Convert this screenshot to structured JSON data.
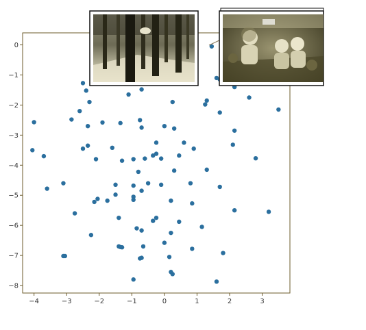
{
  "chart_data": {
    "type": "scatter",
    "title": "",
    "xlabel": "",
    "ylabel": "",
    "xlim": [
      -4.35,
      3.85
    ],
    "ylim": [
      -8.25,
      0.4
    ],
    "xticks": [
      -4,
      -3,
      -2,
      -1,
      0,
      1,
      2,
      3
    ],
    "yticks": [
      0,
      -1,
      -2,
      -3,
      -4,
      -5,
      -6,
      -7,
      -8
    ],
    "grid": false,
    "legend": "none",
    "colors": {
      "points": "#2b6f9e",
      "axes": "#6b5a2a",
      "photo_frame": "#111111",
      "connector": "#8a7a5a"
    },
    "series": [
      {
        "points": [
          [
            1.45,
            -0.05
          ],
          [
            2.6,
            -1.75
          ],
          [
            3.5,
            -2.15
          ],
          [
            2.15,
            -1.4
          ],
          [
            1.7,
            -1.15
          ],
          [
            1.3,
            -1.85
          ],
          [
            1.25,
            -1.98
          ],
          [
            -2.5,
            -1.27
          ],
          [
            -2.4,
            -1.52
          ],
          [
            -2.3,
            -1.9
          ],
          [
            -2.6,
            -2.2
          ],
          [
            -2.85,
            -2.48
          ],
          [
            -2.35,
            -2.7
          ],
          [
            -1.9,
            -2.58
          ],
          [
            -1.35,
            -2.6
          ],
          [
            -1.1,
            -1.65
          ],
          [
            -0.7,
            -1.48
          ],
          [
            0.25,
            -1.9
          ],
          [
            -0.75,
            -2.5
          ],
          [
            -0.7,
            -2.75
          ],
          [
            0.0,
            -2.7
          ],
          [
            0.3,
            -2.78
          ],
          [
            0.6,
            -3.25
          ],
          [
            0.45,
            -3.68
          ],
          [
            0.9,
            -3.45
          ],
          [
            1.7,
            -2.25
          ],
          [
            2.15,
            -2.85
          ],
          [
            2.1,
            -3.32
          ],
          [
            2.8,
            -3.77
          ],
          [
            -4.0,
            -2.57
          ],
          [
            -4.05,
            -3.5
          ],
          [
            -3.7,
            -3.7
          ],
          [
            -3.6,
            -4.78
          ],
          [
            -3.1,
            -4.6
          ],
          [
            -2.5,
            -3.45
          ],
          [
            -2.35,
            -3.35
          ],
          [
            -2.1,
            -3.8
          ],
          [
            -1.6,
            -3.42
          ],
          [
            -1.3,
            -3.85
          ],
          [
            -0.95,
            -3.8
          ],
          [
            -0.8,
            -4.22
          ],
          [
            -0.6,
            -3.78
          ],
          [
            -0.35,
            -3.68
          ],
          [
            -0.25,
            -3.62
          ],
          [
            -0.1,
            -3.78
          ],
          [
            -0.25,
            -3.25
          ],
          [
            0.3,
            -4.18
          ],
          [
            0.8,
            -4.6
          ],
          [
            1.3,
            -4.15
          ],
          [
            1.7,
            -4.72
          ],
          [
            -0.5,
            -4.6
          ],
          [
            -0.7,
            -4.85
          ],
          [
            -0.95,
            -4.68
          ],
          [
            -0.1,
            -4.65
          ],
          [
            -1.5,
            -4.65
          ],
          [
            -1.5,
            -4.98
          ],
          [
            -1.75,
            -5.18
          ],
          [
            -2.05,
            -5.12
          ],
          [
            -2.15,
            -5.22
          ],
          [
            -0.95,
            -5.05
          ],
          [
            -0.95,
            -5.15
          ],
          [
            0.2,
            -5.18
          ],
          [
            0.85,
            -5.27
          ],
          [
            2.15,
            -5.5
          ],
          [
            3.2,
            -5.55
          ],
          [
            -2.75,
            -5.6
          ],
          [
            -1.4,
            -5.75
          ],
          [
            -0.35,
            -5.85
          ],
          [
            -0.25,
            -5.75
          ],
          [
            0.45,
            -5.88
          ],
          [
            1.15,
            -6.05
          ],
          [
            -0.85,
            -6.1
          ],
          [
            -0.7,
            -6.17
          ],
          [
            -2.25,
            -6.32
          ],
          [
            0.2,
            -6.25
          ],
          [
            0.0,
            -6.58
          ],
          [
            -1.4,
            -6.7
          ],
          [
            -1.3,
            -6.73
          ],
          [
            -0.65,
            -6.7
          ],
          [
            0.85,
            -6.78
          ],
          [
            1.8,
            -6.92
          ],
          [
            -3.05,
            -7.02
          ],
          [
            -3.1,
            -7.02
          ],
          [
            -0.75,
            -7.1
          ],
          [
            -0.7,
            -7.08
          ],
          [
            0.15,
            -7.05
          ],
          [
            0.2,
            -7.55
          ],
          [
            0.25,
            -7.62
          ],
          [
            -0.95,
            -7.8
          ],
          [
            1.6,
            -7.87
          ],
          [
            -1.35,
            -6.72
          ],
          [
            1.6,
            -1.1
          ]
        ]
      }
    ],
    "photos": [
      {
        "name": "forest-photo",
        "x": 1.45,
        "y": -0.05
      },
      {
        "name": "children-photo",
        "x": 1.45,
        "y": -0.05
      }
    ]
  }
}
